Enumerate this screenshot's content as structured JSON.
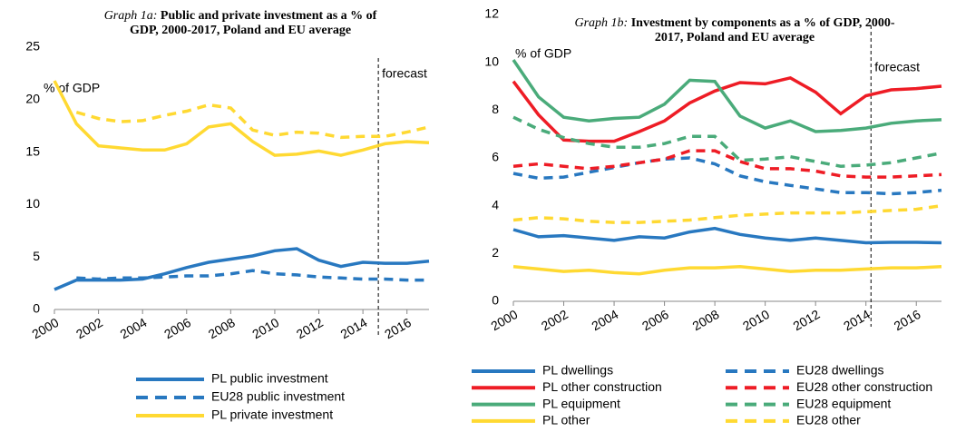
{
  "chart_data": [
    {
      "type": "line",
      "title_prefix": "Graph 1a:",
      "title": "Public and private investment as a % of GDP, 2000-2017, Poland and EU average",
      "y_unit_label": "% of GDP",
      "forecast_label": "forecast",
      "forecast_x": 2014.7,
      "x": [
        2000,
        2001,
        2002,
        2003,
        2004,
        2005,
        2006,
        2007,
        2008,
        2009,
        2010,
        2011,
        2012,
        2013,
        2014,
        2015,
        2016,
        2017
      ],
      "xlim": [
        2000,
        2017
      ],
      "xticks": [
        2000,
        2002,
        2004,
        2006,
        2008,
        2010,
        2012,
        2014,
        2016
      ],
      "ylim": [
        0,
        25
      ],
      "yticks": [
        0,
        5,
        10,
        15,
        20,
        25
      ],
      "legend_columns": 1,
      "series": [
        {
          "name": "PL public investment",
          "color": "#2878c0",
          "dash": false,
          "values": [
            1.9,
            2.8,
            2.8,
            2.8,
            2.9,
            3.4,
            4.0,
            4.5,
            4.8,
            5.1,
            5.6,
            5.8,
            4.7,
            4.1,
            4.5,
            4.4,
            4.4,
            4.6
          ]
        },
        {
          "name": "EU28 public investment",
          "color": "#2878c0",
          "dash": true,
          "values": [
            null,
            3.0,
            2.9,
            3.0,
            3.0,
            3.1,
            3.2,
            3.2,
            3.4,
            3.7,
            3.4,
            3.3,
            3.1,
            3.0,
            2.9,
            2.9,
            2.8,
            2.8
          ]
        },
        {
          "name": "PL private investment",
          "color": "#ffd932",
          "dash": false,
          "values": [
            21.8,
            17.7,
            15.6,
            15.4,
            15.2,
            15.2,
            15.8,
            17.4,
            17.7,
            16.0,
            14.7,
            14.8,
            15.1,
            14.7,
            15.2,
            15.8,
            16.0,
            15.9
          ]
        },
        {
          "color": "#ffd932",
          "dash": true,
          "values": [
            null,
            18.8,
            18.2,
            17.9,
            18.0,
            18.5,
            18.9,
            19.5,
            19.2,
            17.1,
            16.6,
            16.9,
            16.8,
            16.4,
            16.5,
            16.5,
            16.9,
            17.4
          ]
        }
      ]
    },
    {
      "type": "line",
      "title_prefix": "Graph 1b:",
      "title": "Investment by components as a % of GDP, 2000-2017, Poland and EU average",
      "y_unit_label": "% of GDP",
      "forecast_label": "forecast",
      "forecast_x": 2014.2,
      "x": [
        2000,
        2001,
        2002,
        2003,
        2004,
        2005,
        2006,
        2007,
        2008,
        2009,
        2010,
        2011,
        2012,
        2013,
        2014,
        2015,
        2016,
        2017
      ],
      "xlim": [
        2000,
        2017
      ],
      "xticks": [
        2000,
        2002,
        2004,
        2006,
        2008,
        2010,
        2012,
        2014,
        2016
      ],
      "ylim": [
        0,
        12
      ],
      "yticks": [
        0,
        2,
        4,
        6,
        8,
        10,
        12
      ],
      "legend_columns": 2,
      "series": [
        {
          "name": "PL dwellings",
          "color": "#2878c0",
          "dash": false,
          "values": [
            3.0,
            2.7,
            2.75,
            2.65,
            2.55,
            2.7,
            2.65,
            2.9,
            3.05,
            2.8,
            2.65,
            2.55,
            2.65,
            2.55,
            2.45,
            2.47,
            2.47,
            2.45
          ]
        },
        {
          "name": "EU28 dwellings",
          "color": "#2878c0",
          "dash": true,
          "values": [
            5.35,
            5.15,
            5.2,
            5.4,
            5.6,
            5.8,
            5.95,
            6.0,
            5.75,
            5.25,
            5.0,
            4.85,
            4.7,
            4.55,
            4.55,
            4.5,
            4.55,
            4.65
          ]
        },
        {
          "name": "PL other construction",
          "color": "#ee1c25",
          "dash": false,
          "values": [
            9.2,
            7.8,
            6.75,
            6.7,
            6.7,
            7.1,
            7.55,
            8.3,
            8.8,
            9.15,
            9.1,
            9.35,
            8.75,
            7.85,
            8.6,
            8.85,
            8.9,
            9.0
          ]
        },
        {
          "name": "EU28 other construction",
          "color": "#ee1c25",
          "dash": true,
          "values": [
            5.65,
            5.75,
            5.65,
            5.55,
            5.65,
            5.8,
            5.95,
            6.3,
            6.3,
            5.85,
            5.55,
            5.55,
            5.45,
            5.25,
            5.2,
            5.2,
            5.25,
            5.3
          ]
        },
        {
          "name": "PL equipment",
          "color": "#4aab7a",
          "dash": false,
          "values": [
            10.1,
            8.55,
            7.7,
            7.55,
            7.65,
            7.7,
            8.25,
            9.25,
            9.2,
            7.75,
            7.25,
            7.55,
            7.1,
            7.15,
            7.25,
            7.45,
            7.55,
            7.6
          ]
        },
        {
          "name": "EU28 equipment",
          "color": "#4aab7a",
          "dash": true,
          "values": [
            7.7,
            7.2,
            6.85,
            6.6,
            6.45,
            6.45,
            6.6,
            6.9,
            6.9,
            5.9,
            5.95,
            6.05,
            5.85,
            5.65,
            5.7,
            5.8,
            6.0,
            6.2
          ]
        },
        {
          "name": "PL other",
          "color": "#ffd932",
          "dash": false,
          "values": [
            1.45,
            1.35,
            1.25,
            1.3,
            1.2,
            1.15,
            1.3,
            1.4,
            1.4,
            1.45,
            1.35,
            1.25,
            1.3,
            1.3,
            1.35,
            1.4,
            1.4,
            1.45
          ]
        },
        {
          "name": "EU28 other",
          "color": "#ffd932",
          "dash": true,
          "values": [
            3.4,
            3.5,
            3.45,
            3.35,
            3.3,
            3.3,
            3.35,
            3.4,
            3.5,
            3.6,
            3.65,
            3.7,
            3.7,
            3.7,
            3.75,
            3.8,
            3.85,
            4.0
          ]
        }
      ]
    }
  ]
}
